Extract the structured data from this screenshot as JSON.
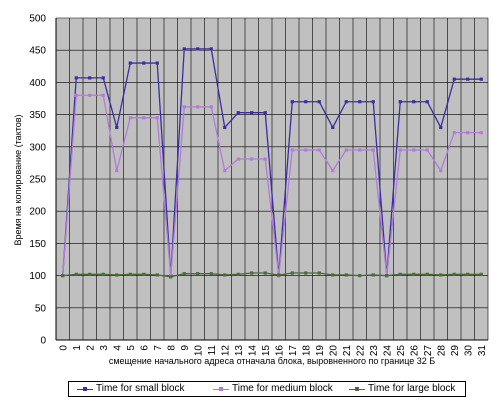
{
  "chart_data": {
    "type": "line",
    "title": "",
    "xlabel": "смещение начального адреса отначала блока, выровненного по границе 32 Б",
    "ylabel": "Время на копирование (тактов)",
    "ylim": [
      0,
      500
    ],
    "yticks": [
      "0",
      "50",
      "100",
      "150",
      "200",
      "250",
      "300",
      "350",
      "400",
      "450",
      "500"
    ],
    "categories": [
      "0",
      "1",
      "2",
      "3",
      "4",
      "5",
      "6",
      "7",
      "8",
      "9",
      "10",
      "11",
      "12",
      "13",
      "14",
      "15",
      "16",
      "17",
      "18",
      "19",
      "20",
      "21",
      "22",
      "23",
      "24",
      "25",
      "26",
      "27",
      "28",
      "29",
      "30",
      "31"
    ],
    "grid": true,
    "legend": "bottom",
    "series": [
      {
        "name": "Time for small block",
        "color": "#3b2fa0",
        "values": [
          100,
          407,
          407,
          407,
          330,
          430,
          430,
          430,
          100,
          452,
          452,
          452,
          330,
          353,
          353,
          353,
          100,
          370,
          370,
          370,
          330,
          370,
          370,
          370,
          100,
          370,
          370,
          370,
          330,
          405,
          405,
          405
        ]
      },
      {
        "name": "Time for medium block",
        "color": "#b07cd8",
        "values": [
          100,
          380,
          380,
          380,
          263,
          345,
          345,
          345,
          100,
          362,
          362,
          362,
          263,
          281,
          281,
          281,
          100,
          295,
          295,
          295,
          263,
          295,
          295,
          295,
          100,
          295,
          295,
          295,
          263,
          322,
          322,
          322
        ]
      },
      {
        "name": "Time for large block",
        "color": "#4a6b3a",
        "values": [
          100,
          102,
          102,
          102,
          101,
          102,
          102,
          101,
          98,
          103,
          103,
          103,
          101,
          102,
          104,
          104,
          101,
          104,
          104,
          104,
          101,
          101,
          100,
          101,
          100,
          102,
          102,
          102,
          101,
          102,
          102,
          102
        ]
      }
    ]
  }
}
